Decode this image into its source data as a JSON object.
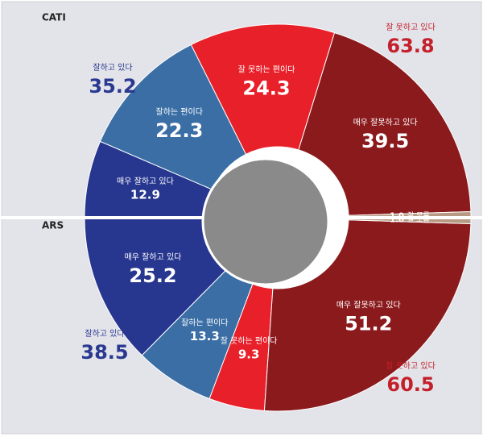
{
  "chart_data": [
    {
      "type": "half-donut",
      "title": "CATI",
      "half": "top",
      "categories": [
        "매우 잘하고 있다",
        "잘하는 편이다",
        "잘 못하는 편이다",
        "매우 잘못하고 있다",
        "잘 모름"
      ],
      "values": [
        12.9,
        22.3,
        24.3,
        39.5,
        1.0
      ],
      "value_labels": [
        "12.9",
        "22.3",
        "24.3",
        "39.5",
        "1.0"
      ],
      "colors": [
        "#27378f",
        "#3a6ea5",
        "#e8202a",
        "#8b1a1d",
        "#b89a84"
      ],
      "groups": [
        {
          "label": "잘하고 있다",
          "value": 35.2
        },
        {
          "label": "잘 못하고 있다",
          "value": 63.8
        }
      ]
    },
    {
      "type": "half-donut",
      "title": "ARS",
      "half": "bottom",
      "categories": [
        "매우 잘하고 있다",
        "잘하는 편이다",
        "잘 못하는 편이다",
        "매우 잘못하고 있다",
        "잘 모름"
      ],
      "values": [
        25.2,
        13.3,
        9.3,
        51.2,
        1.0
      ],
      "value_labels": [
        "25.2",
        "13.3",
        "9.3",
        "51.2",
        "1.0"
      ],
      "colors": [
        "#27378f",
        "#3a6ea5",
        "#e8202a",
        "#8b1a1d",
        "#b89a84"
      ],
      "groups": [
        {
          "label": "잘하고 있다",
          "value": 38.5
        },
        {
          "label": "잘 못하고 있다",
          "value": 60.5
        }
      ]
    }
  ]
}
